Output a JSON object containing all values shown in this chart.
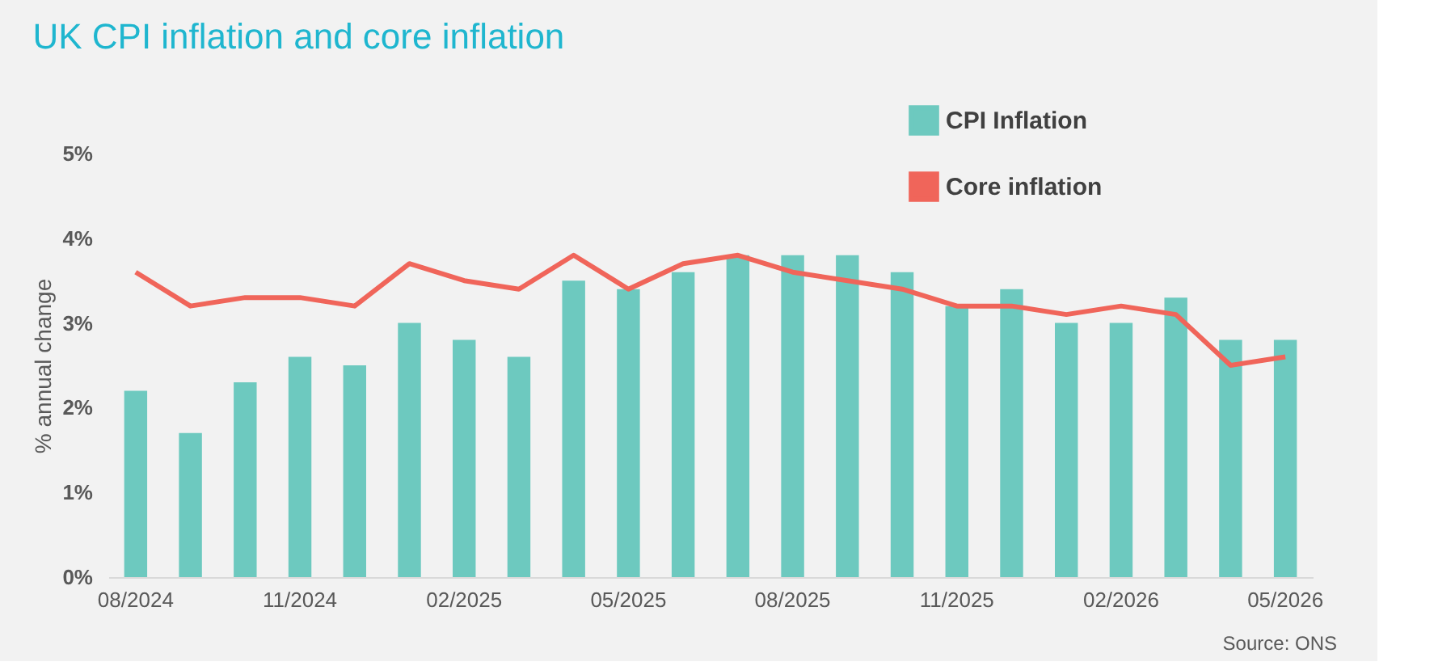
{
  "chart_data": {
    "type": "bar",
    "title": "UK CPI inflation and core inflation",
    "ylabel": "% annual change",
    "categories": [
      "08/2024",
      null,
      null,
      "11/2024",
      null,
      null,
      "02/2025",
      null,
      null,
      "05/2025",
      null,
      null,
      "08/2025",
      null,
      null,
      "11/2025",
      null,
      null,
      "02/2026",
      null,
      null,
      "05/2026"
    ],
    "series": [
      {
        "name": "CPI Inflation",
        "color": "#6dc9bf",
        "values": [
          2.2,
          1.7,
          2.3,
          2.6,
          2.5,
          3.0,
          2.8,
          2.6,
          3.5,
          3.4,
          3.6,
          3.8,
          3.8,
          3.8,
          3.6,
          3.2,
          3.4,
          3.0,
          3.0,
          3.3,
          2.8,
          2.8
        ]
      },
      {
        "name": "Core inflation",
        "type": "line",
        "color": "#f0655a",
        "values": [
          3.6,
          3.2,
          3.3,
          3.3,
          3.2,
          3.7,
          3.5,
          3.4,
          3.8,
          3.4,
          3.7,
          3.8,
          3.6,
          3.5,
          3.4,
          3.2,
          3.2,
          3.1,
          3.2,
          3.1,
          2.5,
          2.6
        ]
      }
    ],
    "ylim": [
      0,
      5
    ],
    "yticks": [
      {
        "value": 0,
        "label": "0%"
      },
      {
        "value": 1,
        "label": "1%"
      },
      {
        "value": 2,
        "label": "2%"
      },
      {
        "value": 3,
        "label": "3%"
      },
      {
        "value": 4,
        "label": "4%"
      },
      {
        "value": 5,
        "label": "5%"
      }
    ],
    "grid": false,
    "legend": "top right",
    "line_style": "solid",
    "marker": "none",
    "annotations": [
      "Source: ONS"
    ]
  }
}
